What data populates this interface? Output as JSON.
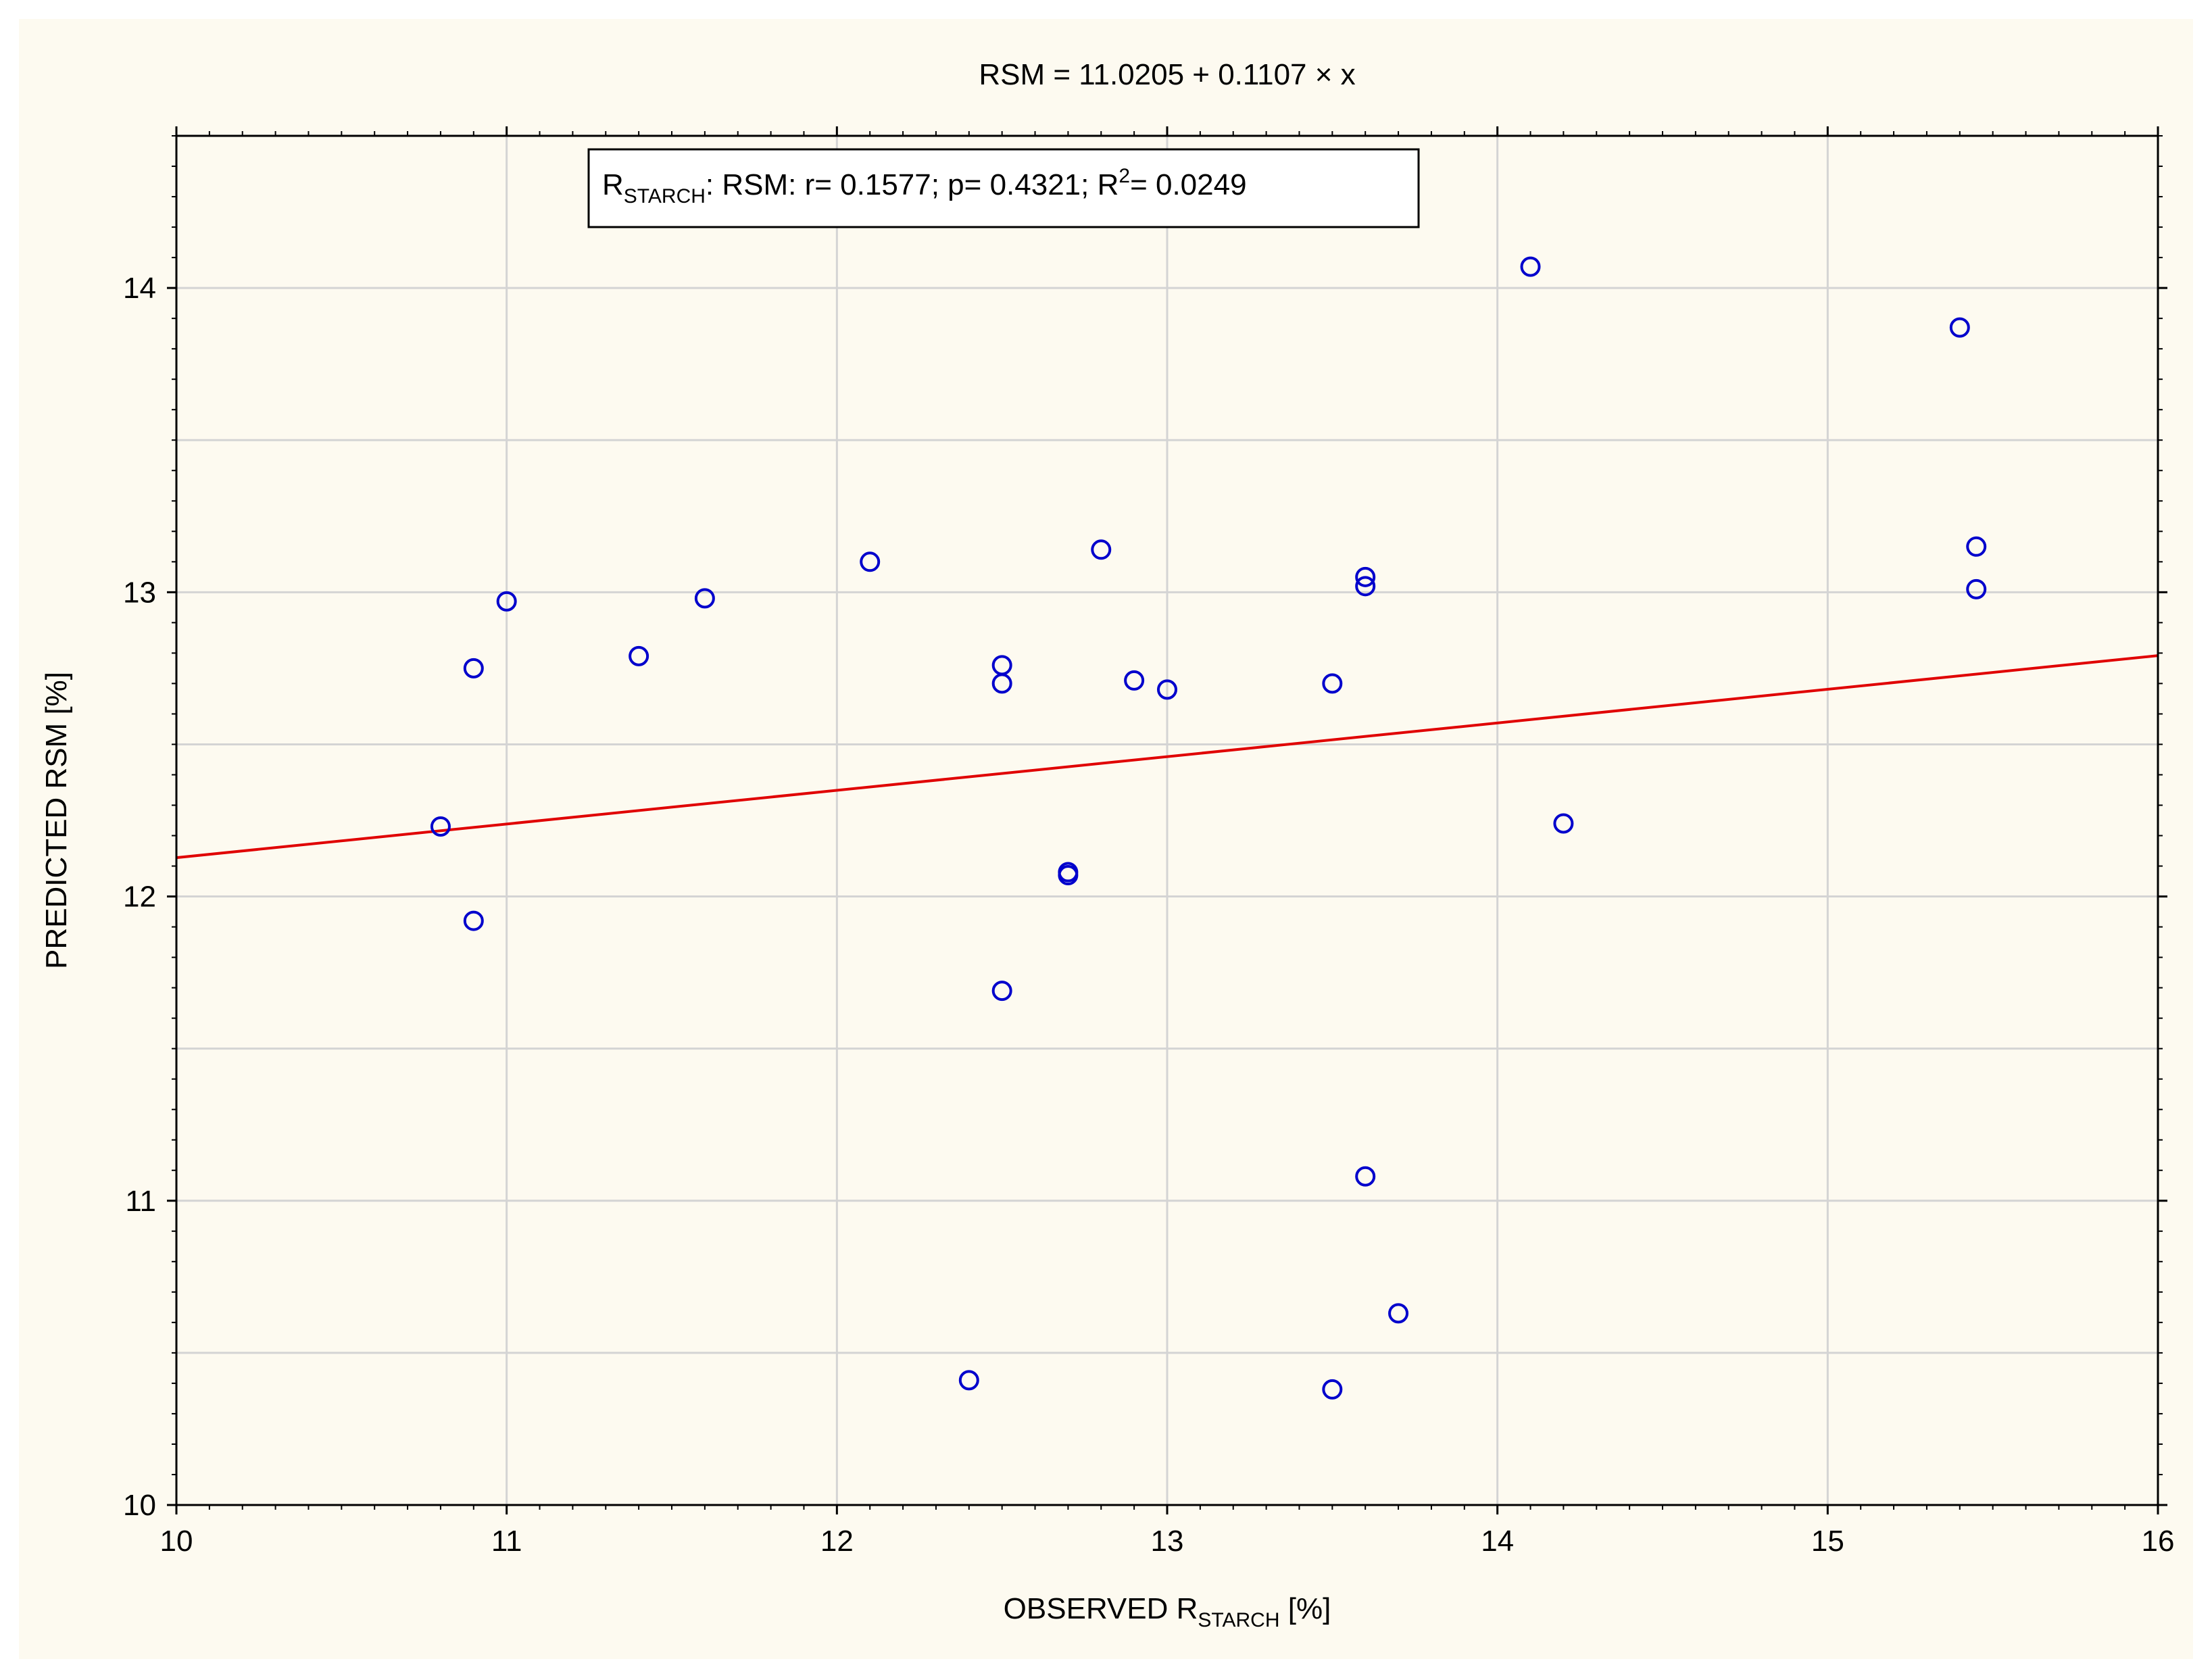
{
  "chart_data": {
    "type": "scatter",
    "title": "RSM = 11.0205 + 0.1107 × x",
    "stats_box": {
      "r_symbol": "R",
      "r_subscript": "STARCH",
      "text": ": RSM: r= 0.1577; p= 0.4321; R",
      "r2_superscript": "2",
      "text_end": "= 0.0249"
    },
    "xlabel": {
      "main": "OBSERVED R",
      "subscript": "STARCH",
      "suffix": " [%]"
    },
    "ylabel": "PREDICTED RSM [%]",
    "xlim": [
      10,
      16
    ],
    "ylim": [
      10,
      14.5
    ],
    "xticks": [
      10,
      11,
      12,
      13,
      14,
      15,
      16
    ],
    "yticks": [
      10,
      11,
      12,
      13,
      14
    ],
    "grid": true,
    "fit_line": {
      "intercept": 11.0205,
      "slope": 0.1107,
      "color": "#e00000"
    },
    "marker_color": "#0000cc",
    "points": [
      {
        "x": 10.8,
        "y": 12.23
      },
      {
        "x": 10.9,
        "y": 12.75
      },
      {
        "x": 10.9,
        "y": 11.92
      },
      {
        "x": 11.0,
        "y": 12.97
      },
      {
        "x": 11.4,
        "y": 12.79
      },
      {
        "x": 11.6,
        "y": 12.98
      },
      {
        "x": 12.1,
        "y": 13.1
      },
      {
        "x": 12.4,
        "y": 10.41
      },
      {
        "x": 12.5,
        "y": 12.76
      },
      {
        "x": 12.5,
        "y": 12.7
      },
      {
        "x": 12.5,
        "y": 11.69
      },
      {
        "x": 12.7,
        "y": 12.08
      },
      {
        "x": 12.7,
        "y": 12.07
      },
      {
        "x": 12.8,
        "y": 13.14
      },
      {
        "x": 12.9,
        "y": 12.71
      },
      {
        "x": 13.0,
        "y": 12.68
      },
      {
        "x": 13.5,
        "y": 12.7
      },
      {
        "x": 13.5,
        "y": 10.38
      },
      {
        "x": 13.6,
        "y": 13.05
      },
      {
        "x": 13.6,
        "y": 13.02
      },
      {
        "x": 13.6,
        "y": 11.08
      },
      {
        "x": 13.7,
        "y": 10.63
      },
      {
        "x": 14.1,
        "y": 14.07
      },
      {
        "x": 14.2,
        "y": 12.24
      },
      {
        "x": 15.4,
        "y": 13.87
      },
      {
        "x": 15.45,
        "y": 13.15
      },
      {
        "x": 15.45,
        "y": 13.01
      }
    ]
  }
}
